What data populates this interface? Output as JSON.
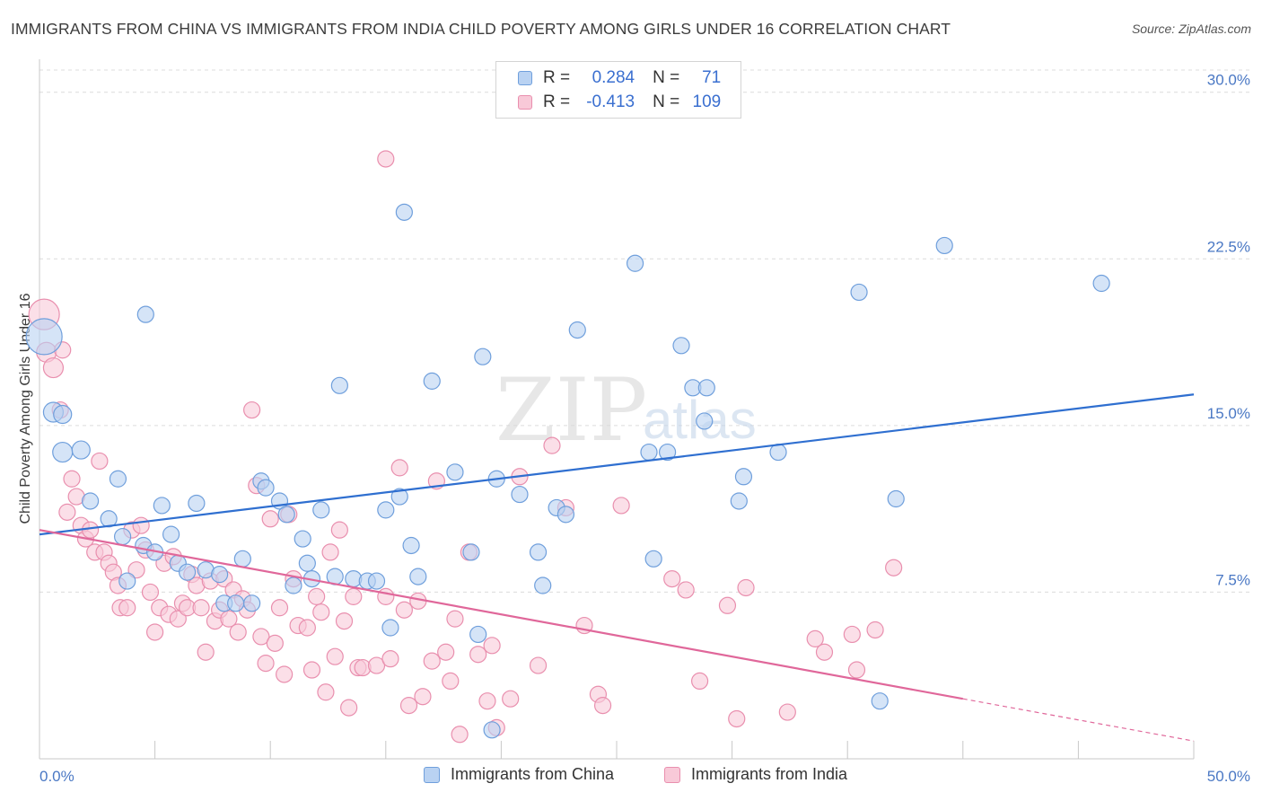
{
  "title": "IMMIGRANTS FROM CHINA VS IMMIGRANTS FROM INDIA CHILD POVERTY AMONG GIRLS UNDER 16 CORRELATION CHART",
  "source": "Source: ZipAtlas.com",
  "watermark": {
    "zip": "ZIP",
    "atlas": "atlas"
  },
  "legend": {
    "r_label": "R =",
    "n_label": "N =",
    "china": {
      "r": "0.284",
      "n": "71"
    },
    "india": {
      "r": "-0.413",
      "n": "109"
    }
  },
  "colors": {
    "china_fill": "#b9d2f2",
    "china_stroke": "#6f9fdc",
    "china_line": "#2f6fd0",
    "india_fill": "#f8c9d8",
    "india_stroke": "#e98fae",
    "india_line": "#e0679a",
    "tick_label": "#4a78c4",
    "grid": "#dcdcdc"
  },
  "chart_data": {
    "type": "scatter",
    "title": "IMMIGRANTS FROM CHINA VS IMMIGRANTS FROM INDIA CHILD POVERTY AMONG GIRLS UNDER 16 CORRELATION CHART",
    "xlabel": "",
    "ylabel": "Child Poverty Among Girls Under 16",
    "xlim": [
      0,
      50
    ],
    "ylim": [
      0,
      31
    ],
    "x_tick_labels": [
      "0.0%",
      "50.0%"
    ],
    "y_ticks": [
      7.5,
      15.0,
      22.5,
      30.0
    ],
    "y_tick_labels": [
      "7.5%",
      "15.0%",
      "22.5%",
      "30.0%"
    ],
    "grid": true,
    "legend_position": "top-center",
    "series": [
      {
        "name": "Immigrants from China",
        "trend": {
          "x": [
            0,
            50
          ],
          "y": [
            10.1,
            16.4
          ]
        },
        "points": [
          [
            0.2,
            19.0
          ],
          [
            0.6,
            15.6
          ],
          [
            1.0,
            15.5
          ],
          [
            1.0,
            13.8
          ],
          [
            1.8,
            13.9
          ],
          [
            2.2,
            11.6
          ],
          [
            3.0,
            10.8
          ],
          [
            3.4,
            12.6
          ],
          [
            3.6,
            10.0
          ],
          [
            3.8,
            8.0
          ],
          [
            4.5,
            9.6
          ],
          [
            4.6,
            20.0
          ],
          [
            5.0,
            9.3
          ],
          [
            5.3,
            11.4
          ],
          [
            5.7,
            10.1
          ],
          [
            6.0,
            8.8
          ],
          [
            6.4,
            8.4
          ],
          [
            6.8,
            11.5
          ],
          [
            7.2,
            8.5
          ],
          [
            7.8,
            8.3
          ],
          [
            8.0,
            7.0
          ],
          [
            8.5,
            7.0
          ],
          [
            8.8,
            9.0
          ],
          [
            9.2,
            7.0
          ],
          [
            9.6,
            12.5
          ],
          [
            9.8,
            12.2
          ],
          [
            10.4,
            11.6
          ],
          [
            10.7,
            11.0
          ],
          [
            11.0,
            7.8
          ],
          [
            11.4,
            9.9
          ],
          [
            11.6,
            8.8
          ],
          [
            11.8,
            8.1
          ],
          [
            12.2,
            11.2
          ],
          [
            12.8,
            8.2
          ],
          [
            13.0,
            16.8
          ],
          [
            13.6,
            8.1
          ],
          [
            14.2,
            8.0
          ],
          [
            14.6,
            8.0
          ],
          [
            15.0,
            11.2
          ],
          [
            15.2,
            5.9
          ],
          [
            15.6,
            11.8
          ],
          [
            15.8,
            24.6
          ],
          [
            16.1,
            9.6
          ],
          [
            16.4,
            8.2
          ],
          [
            17.0,
            17.0
          ],
          [
            18.0,
            12.9
          ],
          [
            18.7,
            9.3
          ],
          [
            19.0,
            5.6
          ],
          [
            19.2,
            18.1
          ],
          [
            19.6,
            1.3
          ],
          [
            19.8,
            12.6
          ],
          [
            20.8,
            11.9
          ],
          [
            21.6,
            9.3
          ],
          [
            21.8,
            7.8
          ],
          [
            22.4,
            11.3
          ],
          [
            22.8,
            11.0
          ],
          [
            23.3,
            19.3
          ],
          [
            25.8,
            22.3
          ],
          [
            26.4,
            13.8
          ],
          [
            26.6,
            9.0
          ],
          [
            27.2,
            13.8
          ],
          [
            27.8,
            18.6
          ],
          [
            28.3,
            16.7
          ],
          [
            28.8,
            15.2
          ],
          [
            28.9,
            16.7
          ],
          [
            30.3,
            11.6
          ],
          [
            30.5,
            12.7
          ],
          [
            32.0,
            13.8
          ],
          [
            35.5,
            21.0
          ],
          [
            36.4,
            2.6
          ],
          [
            37.1,
            11.7
          ],
          [
            39.2,
            23.1
          ],
          [
            46.0,
            21.4
          ]
        ],
        "sizes": [
          40,
          22,
          20,
          22,
          20,
          18,
          18,
          18,
          18,
          18,
          18,
          18,
          18,
          18,
          18,
          18,
          18,
          18,
          18,
          18,
          18,
          18,
          18,
          18,
          18,
          18,
          18,
          18,
          18,
          18,
          18,
          18,
          18,
          18,
          18,
          18,
          18,
          18,
          18,
          18,
          18,
          18,
          18,
          18,
          18,
          18,
          18,
          18,
          18,
          18,
          18,
          18,
          18,
          18,
          18,
          18,
          18,
          18,
          18,
          18,
          18,
          18,
          18,
          18,
          18,
          18,
          18,
          18,
          18,
          18,
          18
        ]
      },
      {
        "name": "Immigrants from India",
        "trend": {
          "x": [
            0,
            40
          ],
          "y": [
            10.3,
            2.7
          ]
        },
        "trend_dashed": {
          "x": [
            40,
            50
          ],
          "y": [
            2.7,
            0.8
          ]
        },
        "points": [
          [
            0.2,
            20.0
          ],
          [
            0.3,
            18.3
          ],
          [
            0.6,
            17.6
          ],
          [
            1.0,
            18.4
          ],
          [
            0.9,
            15.7
          ],
          [
            1.2,
            11.1
          ],
          [
            1.4,
            12.6
          ],
          [
            1.6,
            11.8
          ],
          [
            1.8,
            10.5
          ],
          [
            2.0,
            9.9
          ],
          [
            2.2,
            10.3
          ],
          [
            2.4,
            9.3
          ],
          [
            2.6,
            13.4
          ],
          [
            2.8,
            9.3
          ],
          [
            3.0,
            8.8
          ],
          [
            3.2,
            8.4
          ],
          [
            3.4,
            7.8
          ],
          [
            3.5,
            6.8
          ],
          [
            3.8,
            6.8
          ],
          [
            4.0,
            10.3
          ],
          [
            4.2,
            8.5
          ],
          [
            4.4,
            10.5
          ],
          [
            4.6,
            9.4
          ],
          [
            4.8,
            7.5
          ],
          [
            5.0,
            5.7
          ],
          [
            5.2,
            6.8
          ],
          [
            5.4,
            8.8
          ],
          [
            5.6,
            6.5
          ],
          [
            5.8,
            9.1
          ],
          [
            6.0,
            6.3
          ],
          [
            6.2,
            7.0
          ],
          [
            6.4,
            6.8
          ],
          [
            6.6,
            8.3
          ],
          [
            6.8,
            7.8
          ],
          [
            7.0,
            6.8
          ],
          [
            7.2,
            4.8
          ],
          [
            7.4,
            8.0
          ],
          [
            7.6,
            6.2
          ],
          [
            7.8,
            6.7
          ],
          [
            8.0,
            8.1
          ],
          [
            8.2,
            6.3
          ],
          [
            8.4,
            7.6
          ],
          [
            8.6,
            5.7
          ],
          [
            8.8,
            7.2
          ],
          [
            9.0,
            6.7
          ],
          [
            9.2,
            15.7
          ],
          [
            9.4,
            12.3
          ],
          [
            9.6,
            5.5
          ],
          [
            9.8,
            4.3
          ],
          [
            10.0,
            10.8
          ],
          [
            10.2,
            5.2
          ],
          [
            10.4,
            6.8
          ],
          [
            10.6,
            3.8
          ],
          [
            10.8,
            11.0
          ],
          [
            11.0,
            8.1
          ],
          [
            11.2,
            6.0
          ],
          [
            11.6,
            5.9
          ],
          [
            11.8,
            4.0
          ],
          [
            12.0,
            7.3
          ],
          [
            12.2,
            6.6
          ],
          [
            12.4,
            3.0
          ],
          [
            12.6,
            9.3
          ],
          [
            12.8,
            4.6
          ],
          [
            13.0,
            10.3
          ],
          [
            13.2,
            6.2
          ],
          [
            13.4,
            2.3
          ],
          [
            13.6,
            7.3
          ],
          [
            13.8,
            4.1
          ],
          [
            14.0,
            4.1
          ],
          [
            14.6,
            4.2
          ],
          [
            15.0,
            7.3
          ],
          [
            15.2,
            4.5
          ],
          [
            15.6,
            13.1
          ],
          [
            15.8,
            6.7
          ],
          [
            16.0,
            2.4
          ],
          [
            16.4,
            7.1
          ],
          [
            16.6,
            2.8
          ],
          [
            17.0,
            4.4
          ],
          [
            17.2,
            12.5
          ],
          [
            17.6,
            4.8
          ],
          [
            17.8,
            3.5
          ],
          [
            18.0,
            6.3
          ],
          [
            18.2,
            1.1
          ],
          [
            18.6,
            9.3
          ],
          [
            19.0,
            4.7
          ],
          [
            19.4,
            2.6
          ],
          [
            19.6,
            5.1
          ],
          [
            19.8,
            1.4
          ],
          [
            20.4,
            2.7
          ],
          [
            20.8,
            12.7
          ],
          [
            21.6,
            4.2
          ],
          [
            22.2,
            14.1
          ],
          [
            22.8,
            11.3
          ],
          [
            23.6,
            6.0
          ],
          [
            24.2,
            2.9
          ],
          [
            24.4,
            2.4
          ],
          [
            25.2,
            11.4
          ],
          [
            27.4,
            8.1
          ],
          [
            28.0,
            7.6
          ],
          [
            28.6,
            3.5
          ],
          [
            29.8,
            6.9
          ],
          [
            30.2,
            1.8
          ],
          [
            30.6,
            7.7
          ],
          [
            32.4,
            2.1
          ],
          [
            33.6,
            5.4
          ],
          [
            34.0,
            4.8
          ],
          [
            35.2,
            5.6
          ],
          [
            36.2,
            5.8
          ],
          [
            37.0,
            8.6
          ],
          [
            35.4,
            4.0
          ],
          [
            15.0,
            27.0
          ]
        ],
        "sizes": [
          34,
          22,
          22,
          18,
          18,
          18,
          18,
          18,
          18,
          18,
          18,
          18,
          18,
          18,
          18,
          18,
          18,
          18,
          18,
          18,
          18,
          18,
          18,
          18,
          18,
          18,
          18,
          18,
          18,
          18,
          18,
          18,
          18,
          18,
          18,
          18,
          18,
          18,
          18,
          18,
          18,
          18,
          18,
          18,
          18,
          18,
          18,
          18,
          18,
          18,
          18,
          18,
          18,
          18,
          18,
          18,
          18,
          18,
          18,
          18,
          18,
          18,
          18,
          18,
          18,
          18,
          18,
          18,
          18,
          18,
          18,
          18,
          18,
          18,
          18,
          18,
          18,
          18,
          18,
          18,
          18,
          18,
          18,
          18,
          18,
          18,
          18,
          18,
          18,
          18,
          18,
          18,
          18,
          18,
          18,
          18,
          18,
          18,
          18,
          18,
          18,
          18,
          18,
          18,
          18,
          18,
          18,
          18,
          18
        ]
      }
    ]
  }
}
